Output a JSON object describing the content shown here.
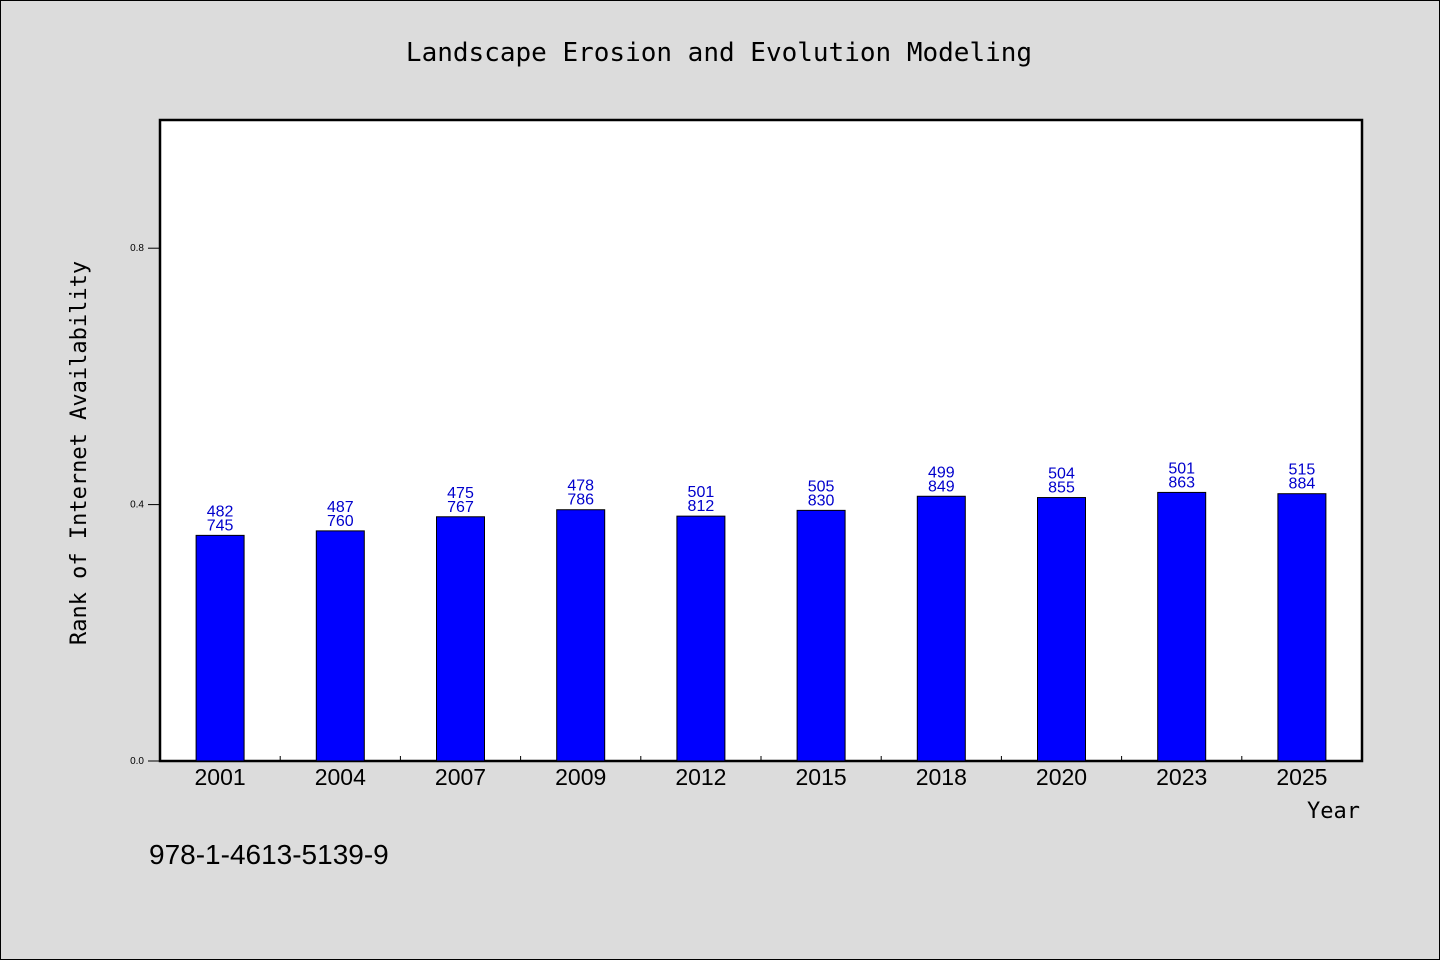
{
  "chart_data": {
    "type": "bar",
    "title": "Landscape Erosion and Evolution Modeling",
    "xlabel": "Year",
    "ylabel": "Rank of Internet Availability",
    "categories": [
      "2001",
      "2004",
      "2007",
      "2009",
      "2012",
      "2015",
      "2018",
      "2020",
      "2023",
      "2025"
    ],
    "values": [
      0.352,
      0.359,
      0.381,
      0.392,
      0.382,
      0.391,
      0.413,
      0.411,
      0.419,
      0.417
    ],
    "labels_top": [
      "482",
      "487",
      "475",
      "478",
      "501",
      "505",
      "499",
      "504",
      "501",
      "515"
    ],
    "labels_bottom": [
      "745",
      "760",
      "767",
      "786",
      "812",
      "830",
      "849",
      "855",
      "863",
      "884"
    ],
    "ylim": [
      0,
      1.0
    ],
    "yticks": [
      0.0,
      0.4,
      0.8
    ],
    "ytick_labels": [
      "0.0",
      "0.4",
      "0.8"
    ],
    "grid": false,
    "colors": {
      "bar": "#0000ff",
      "bar_edge": "#000000",
      "data_label": "#0000cc",
      "background": "#dcdcdc",
      "plot_area": "#ffffff"
    }
  },
  "footer": {
    "isbn": "978-1-4613-5139-9"
  }
}
